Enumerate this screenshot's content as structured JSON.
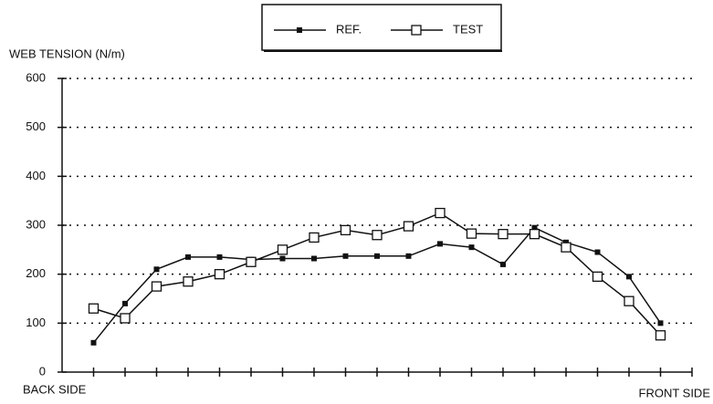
{
  "chart_data": {
    "type": "line",
    "y_label": "WEB TENSION (N/m)",
    "x_start_label": "BACK SIDE",
    "x_end_label": "FRONT SIDE",
    "x": [
      1,
      2,
      3,
      4,
      5,
      6,
      7,
      8,
      9,
      10,
      11,
      12,
      13,
      14,
      15,
      16,
      17,
      18,
      19
    ],
    "series": [
      {
        "name": "REF.",
        "color": "#111111",
        "marker": "filled",
        "values": [
          60,
          140,
          210,
          235,
          235,
          230,
          232,
          232,
          237,
          237,
          237,
          262,
          255,
          220,
          295,
          265,
          245,
          195,
          100
        ]
      },
      {
        "name": "TEST",
        "color": "#111111",
        "marker": "open",
        "values": [
          130,
          110,
          175,
          185,
          200,
          225,
          250,
          275,
          290,
          280,
          298,
          325,
          283,
          282,
          282,
          255,
          195,
          145,
          75
        ]
      }
    ],
    "xlim": [
      0,
      20
    ],
    "xticks": [
      1,
      2,
      3,
      4,
      5,
      6,
      7,
      8,
      9,
      10,
      11,
      12,
      13,
      14,
      15,
      16,
      17,
      18,
      19,
      20
    ],
    "ylim": [
      0,
      600
    ],
    "yticks": [
      0,
      100,
      200,
      300,
      400,
      500,
      600
    ],
    "grid": true,
    "legend": "top"
  }
}
